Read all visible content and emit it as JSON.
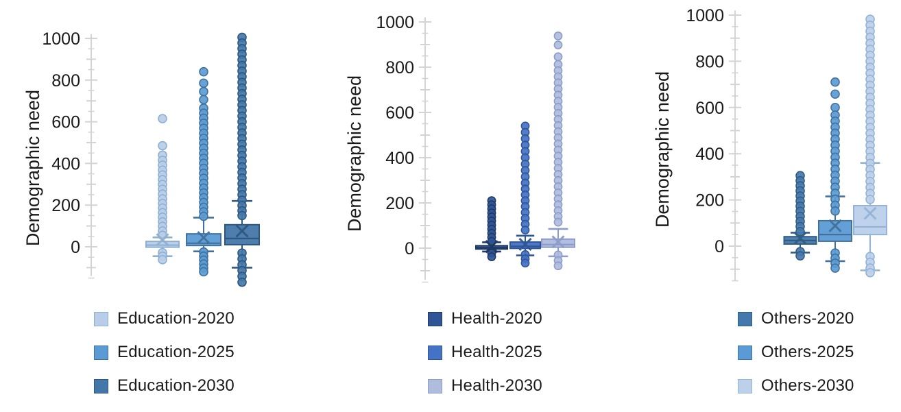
{
  "chart_data": [
    {
      "type": "box",
      "group": "Education",
      "ylabel": "Demographic need",
      "yticks": [
        0,
        200,
        400,
        600,
        800,
        1000
      ],
      "minor_tick_step": 50,
      "ylim": [
        -150,
        1050
      ],
      "grid": false,
      "legend_position": "bottom",
      "series": [
        {
          "name": "Education-2020",
          "fill": "#B7CDE8",
          "stroke": "#8FAFD2",
          "box": {
            "whisker_low": -45,
            "q1": -2,
            "median": 8,
            "q3": 26,
            "whisker_high": 45,
            "mean": 34
          },
          "points": [
            615,
            485,
            440,
            415,
            392,
            368,
            345,
            322,
            299,
            276,
            253,
            230,
            208,
            186,
            164,
            142,
            120,
            98,
            76,
            55,
            -28,
            -45,
            -62
          ]
        },
        {
          "name": "Education-2025",
          "fill": "#5B9BD5",
          "stroke": "#41719C",
          "box": {
            "whisker_low": -22,
            "q1": 6,
            "median": 17,
            "q3": 62,
            "whisker_high": 140,
            "mean": 44
          },
          "points": [
            840,
            785,
            745,
            706,
            665,
            641,
            617,
            593,
            569,
            545,
            521,
            497,
            473,
            449,
            425,
            401,
            377,
            353,
            329,
            305,
            282,
            259,
            236,
            213,
            190,
            168,
            146,
            -25,
            -45,
            -64,
            -83,
            -102,
            -120
          ]
        },
        {
          "name": "Education-2030",
          "fill": "#4377A9",
          "stroke": "#2E577F",
          "box": {
            "whisker_low": -100,
            "q1": 10,
            "median": 40,
            "q3": 106,
            "whisker_high": 220,
            "mean": 76
          },
          "points": [
            1005,
            978,
            951,
            924,
            897,
            870,
            843,
            816,
            789,
            762,
            735,
            708,
            681,
            654,
            627,
            600,
            573,
            546,
            519,
            492,
            465,
            438,
            411,
            384,
            357,
            330,
            303,
            276,
            250,
            224,
            198,
            173,
            150,
            -30,
            -58,
            -86,
            -114,
            -142,
            -170
          ]
        }
      ]
    },
    {
      "type": "box",
      "group": "Health",
      "ylabel": "Demographic need",
      "yticks": [
        0,
        200,
        400,
        600,
        800,
        1000
      ],
      "minor_tick_step": 50,
      "ylim": [
        -150,
        1050
      ],
      "grid": false,
      "legend_position": "bottom",
      "series": [
        {
          "name": "Health-2020",
          "fill": "#2F5597",
          "stroke": "#1F3864",
          "box": {
            "whisker_low": -15,
            "q1": -4,
            "median": 2,
            "q3": 11,
            "whisker_high": 26,
            "mean": 7
          },
          "points": [
            210,
            192,
            174,
            156,
            138,
            120,
            102,
            84,
            66,
            48,
            30,
            -22,
            -38
          ]
        },
        {
          "name": "Health-2025",
          "fill": "#4472C4",
          "stroke": "#2F5597",
          "box": {
            "whisker_low": -32,
            "q1": -1,
            "median": 8,
            "q3": 27,
            "whisker_high": 55,
            "mean": 17
          },
          "points": [
            540,
            512,
            484,
            456,
            428,
            400,
            372,
            344,
            316,
            288,
            262,
            236,
            210,
            184,
            158,
            132,
            106,
            80,
            -28,
            -47,
            -66
          ]
        },
        {
          "name": "Health-2030",
          "fill": "#AFBCDE",
          "stroke": "#8D9CC8",
          "box": {
            "whisker_low": -36,
            "q1": 4,
            "median": 16,
            "q3": 40,
            "whisker_high": 85,
            "mean": 28
          },
          "points": [
            938,
            898,
            846,
            812,
            785,
            758,
            731,
            704,
            677,
            650,
            623,
            596,
            569,
            542,
            515,
            488,
            461,
            434,
            407,
            380,
            353,
            326,
            299,
            272,
            245,
            218,
            192,
            166,
            140,
            115,
            -30,
            -55,
            -78
          ]
        }
      ]
    },
    {
      "type": "box",
      "group": "Others",
      "ylabel": "Demographic need",
      "yticks": [
        0,
        200,
        400,
        600,
        800,
        1000
      ],
      "minor_tick_step": 50,
      "ylim": [
        -160,
        1050
      ],
      "grid": false,
      "legend_position": "bottom",
      "series": [
        {
          "name": "Others-2020",
          "fill": "#4679AB",
          "stroke": "#315C83",
          "box": {
            "whisker_low": -28,
            "q1": 9,
            "median": 24,
            "q3": 41,
            "whisker_high": 58,
            "mean": 34
          },
          "points": [
            305,
            283,
            261,
            239,
            217,
            195,
            173,
            151,
            129,
            107,
            85,
            63,
            -24,
            -42
          ]
        },
        {
          "name": "Others-2025",
          "fill": "#5B9BD5",
          "stroke": "#41719C",
          "box": {
            "whisker_low": -65,
            "q1": 21,
            "median": 50,
            "q3": 110,
            "whisker_high": 215,
            "mean": 88
          },
          "points": [
            710,
            658,
            600,
            567,
            541,
            515,
            489,
            463,
            437,
            411,
            385,
            359,
            333,
            307,
            281,
            255,
            229,
            203,
            177,
            152,
            -30,
            -52,
            -74,
            -95
          ]
        },
        {
          "name": "Others-2030",
          "fill": "#BCD0EA",
          "stroke": "#94B3D6",
          "box": {
            "whisker_low": -105,
            "q1": 50,
            "median": 83,
            "q3": 175,
            "whisker_high": 360,
            "mean": 142
          },
          "points": [
            982,
            956,
            930,
            904,
            878,
            852,
            826,
            800,
            774,
            748,
            722,
            696,
            670,
            644,
            618,
            592,
            566,
            540,
            514,
            488,
            462,
            436,
            410,
            384,
            358,
            332,
            306,
            280,
            254,
            228,
            202,
            -45,
            -70,
            -95,
            -115
          ]
        }
      ]
    }
  ],
  "colors": {
    "axis": "#D4D4D4",
    "text": "#1A1A1A",
    "background": "#FFFFFF"
  }
}
